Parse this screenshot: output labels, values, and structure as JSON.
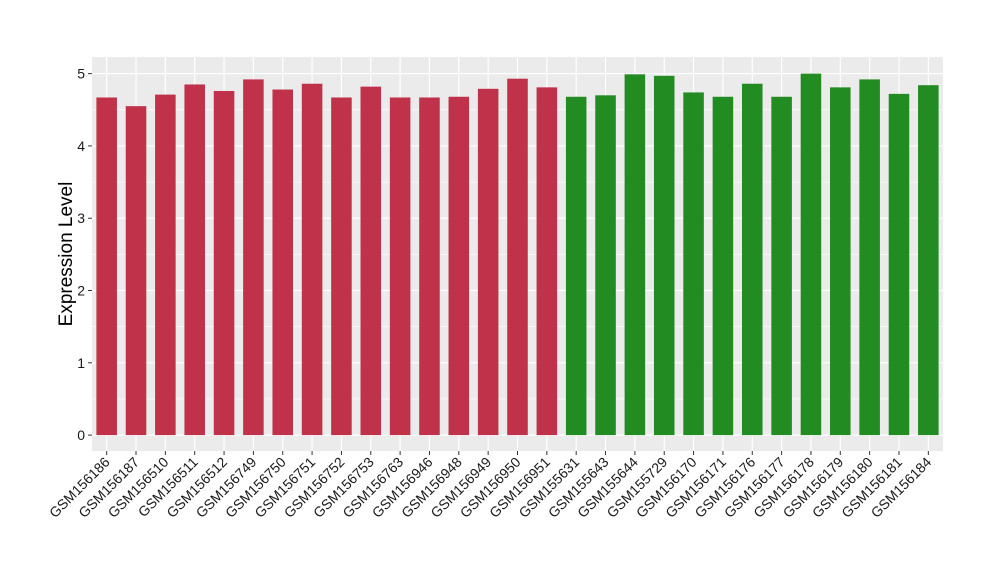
{
  "chart_data": {
    "type": "bar",
    "title": "",
    "xlabel": "",
    "ylabel": "Expression Level",
    "ylim": [
      -0.22,
      5.23
    ],
    "yticks": [
      0,
      1,
      2,
      3,
      4,
      5
    ],
    "grid": true,
    "legend": "none",
    "background": "#EBEBEB",
    "gridline_color": "#FFFFFF",
    "categories": [
      "GSM156186",
      "GSM156187",
      "GSM156510",
      "GSM156511",
      "GSM156512",
      "GSM156749",
      "GSM156750",
      "GSM156751",
      "GSM156752",
      "GSM156753",
      "GSM156763",
      "GSM156946",
      "GSM156948",
      "GSM156949",
      "GSM156950",
      "GSM156951",
      "GSM155631",
      "GSM155643",
      "GSM155644",
      "GSM155729",
      "GSM156170",
      "GSM156171",
      "GSM156176",
      "GSM156177",
      "GSM156178",
      "GSM156179",
      "GSM156180",
      "GSM156181",
      "GSM156184"
    ],
    "values": [
      4.67,
      4.55,
      4.71,
      4.85,
      4.76,
      4.92,
      4.78,
      4.86,
      4.67,
      4.82,
      4.67,
      4.67,
      4.68,
      4.79,
      4.93,
      4.81,
      4.68,
      4.7,
      4.99,
      4.97,
      4.74,
      4.68,
      4.86,
      4.68,
      5.0,
      4.81,
      4.92,
      4.72,
      4.84
    ],
    "group_colors": [
      "#C0314A",
      "#C0314A",
      "#C0314A",
      "#C0314A",
      "#C0314A",
      "#C0314A",
      "#C0314A",
      "#C0314A",
      "#C0314A",
      "#C0314A",
      "#C0314A",
      "#C0314A",
      "#C0314A",
      "#C0314A",
      "#C0314A",
      "#C0314A",
      "#228B22",
      "#228B22",
      "#228B22",
      "#228B22",
      "#228B22",
      "#228B22",
      "#228B22",
      "#228B22",
      "#228B22",
      "#228B22",
      "#228B22",
      "#228B22",
      "#228B22"
    ]
  }
}
